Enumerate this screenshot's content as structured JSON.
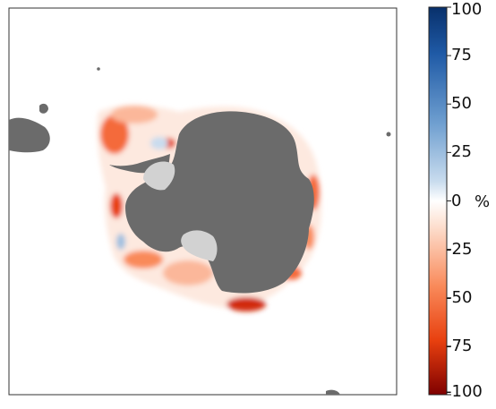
{
  "map": {
    "projection": "south-polar stereographic",
    "land_color": "#6b6b6b",
    "ice_shelf_color": "#d2d2d2",
    "background_color": "#ffffff"
  },
  "colorbar": {
    "unit": "%",
    "ticks": [
      "100",
      "75",
      "50",
      "25",
      "0",
      "-25",
      "-50",
      "-75",
      "-100"
    ],
    "range": [
      -100,
      100
    ],
    "colormap": "diverging red-white-blue",
    "color_max": "#08306b",
    "color_mid": "#ffffff",
    "color_min": "#7f0000"
  }
}
